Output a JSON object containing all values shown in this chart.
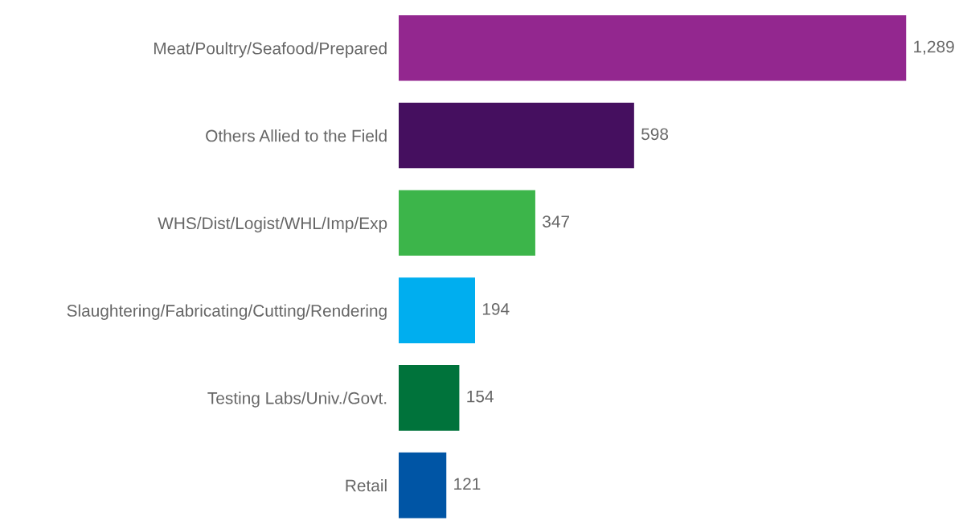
{
  "chart_data": {
    "type": "bar",
    "orientation": "horizontal",
    "categories": [
      "Meat/Poultry/Seafood/Prepared",
      "Others Allied to the Field",
      "WHS/Dist/Logist/WHL/Imp/Exp",
      "Slaughtering/Fabricating/Cutting/Rendering",
      "Testing Labs/Univ./Govt.",
      "Retail"
    ],
    "values": [
      1289,
      598,
      347,
      194,
      154,
      121
    ],
    "value_labels": [
      "1,289",
      "598",
      "347",
      "194",
      "154",
      "121"
    ],
    "colors": [
      "#93278f",
      "#450f5f",
      "#3cb54a",
      "#00aeef",
      "#00733b",
      "#0055a5"
    ],
    "grid": false,
    "legend": false
  }
}
